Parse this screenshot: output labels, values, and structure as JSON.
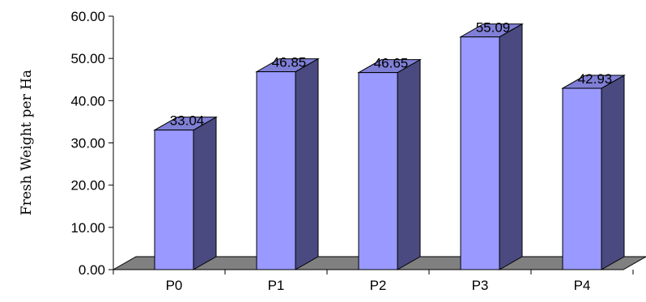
{
  "chart_data": {
    "type": "bar",
    "categories": [
      "P0",
      "P1",
      "P2",
      "P3",
      "P4"
    ],
    "values": [
      33.04,
      46.85,
      46.65,
      55.09,
      42.93
    ],
    "data_labels": [
      "33.04",
      "46.85",
      "46.65",
      "55.09",
      "42.93"
    ],
    "ylabel": "Fresh Weight per  Ha",
    "xlabel": "",
    "ylim": [
      0,
      60
    ],
    "yticks": [
      "0.00",
      "10.00",
      "20.00",
      "30.00",
      "40.00",
      "50.00",
      "60.00"
    ],
    "grid": false,
    "style": "3d-column",
    "colors": {
      "bar_front": "#9999ff",
      "bar_side": "#4a4a80",
      "bar_top": "#7f7fd6",
      "floor": "#808080",
      "outline": "#000000"
    }
  }
}
